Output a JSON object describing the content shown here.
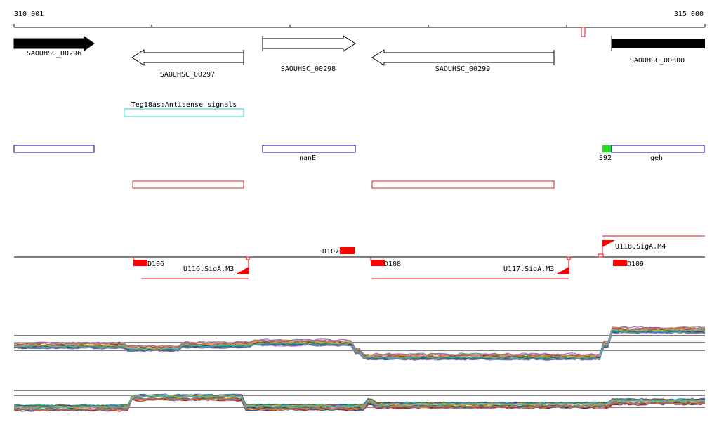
{
  "ruler": {
    "start_label": "310 001",
    "end_label": "315 000"
  },
  "genes": [
    {
      "label": "SAOUHSC_00296"
    },
    {
      "label": "SAOUHSC_00297"
    },
    {
      "label": "SAOUHSC_00298"
    },
    {
      "label": "SAOUHSC_00299"
    },
    {
      "label": "SAOUHSC_00300"
    }
  ],
  "antisense": {
    "label": "Teg18as:Antisense signals",
    "color": "#33cccc"
  },
  "operons": {
    "labels": [
      "nanE",
      "S92",
      "geh"
    ],
    "operon_color": "#000099",
    "promoter_color": "#22dd22"
  },
  "transcripts": {
    "color": "#dd2222"
  },
  "signals": {
    "labels": [
      "D106",
      "D107",
      "D108",
      "D109",
      "U116.SigA.M3",
      "U117.SigA.M3",
      "U118.SigA.M4"
    ],
    "color": "#ff0000"
  },
  "expression": {
    "top_panel_note": "",
    "bottom_panel_note": ""
  }
}
